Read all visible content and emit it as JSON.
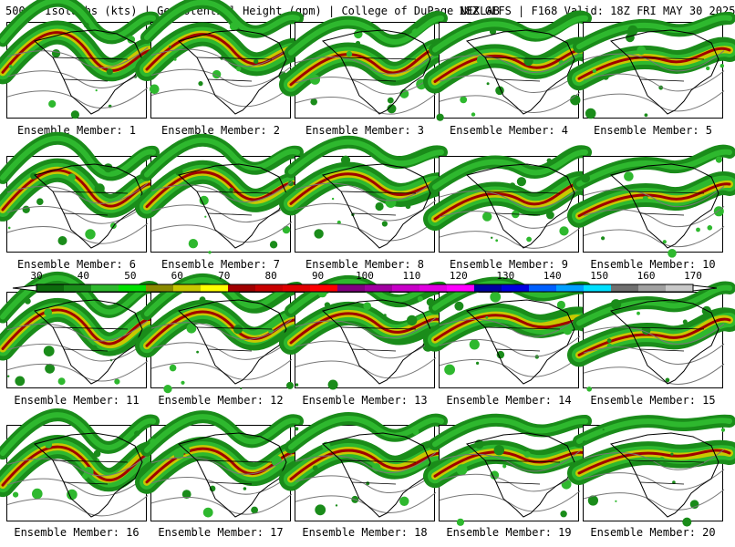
{
  "header": {
    "left": "500mb Isotachs (kts) | Geopotential Height (gpm) | College of DuPage NEXLAB",
    "right": "18Z GEFS | F168 Valid: 18Z FRI MAY 30 2025"
  },
  "members": [
    "Ensemble Member: 1",
    "Ensemble Member: 2",
    "Ensemble Member: 3",
    "Ensemble Member: 4",
    "Ensemble Member: 5",
    "Ensemble Member: 6",
    "Ensemble Member: 7",
    "Ensemble Member: 8",
    "Ensemble Member: 9",
    "Ensemble Member: 10",
    "Ensemble Member: 11",
    "Ensemble Member: 12",
    "Ensemble Member: 13",
    "Ensemble Member: 14",
    "Ensemble Member: 15",
    "Ensemble Member: 16",
    "Ensemble Member: 17",
    "Ensemble Member: 18",
    "Ensemble Member: 19",
    "Ensemble Member: 20"
  ],
  "colorbar": {
    "labels": [
      "30",
      "40",
      "50",
      "60",
      "70",
      "80",
      "90",
      "100",
      "110",
      "120",
      "130",
      "140",
      "150",
      "160",
      "170"
    ],
    "colors": [
      "#0d6b0d",
      "#1a8c1a",
      "#2eb82e",
      "#00e000",
      "#8a8a00",
      "#c8c800",
      "#ffff00",
      "#a00000",
      "#c80000",
      "#e00000",
      "#ff0000",
      "#800080",
      "#a000a0",
      "#c800c8",
      "#e000e0",
      "#ff00ff",
      "#0000a0",
      "#0000e0",
      "#0060ff",
      "#00a0ff",
      "#00e0ff",
      "#707070",
      "#a0a0a0",
      "#c8c8c8"
    ]
  }
}
